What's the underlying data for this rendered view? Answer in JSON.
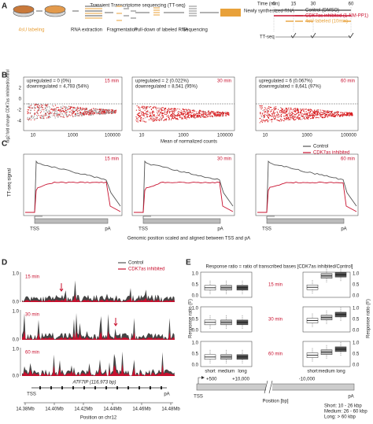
{
  "panels": {
    "a": {
      "letter": "A",
      "title": "Transient Transcriptome sequencing (TT-seq)",
      "steps": [
        "4sU labeling",
        "RNA extraction",
        "Fragmentation",
        "Pull-down of labeled RNA",
        "Sequencing"
      ],
      "result": "Newly synthesized RNA",
      "time_label": "Time (min)",
      "times": [
        "0",
        "15",
        "30",
        "60"
      ],
      "legend": [
        "Control (DMSO)",
        "CDK7as inhibited (1-NM-PP1)",
        "4sU-labeled (10min)"
      ],
      "ttseq": "TT-seq"
    },
    "b": {
      "letter": "B",
      "y_label": "log2 fold change CDK7as inhibited/control",
      "x_label": "Mean of normalized counts",
      "yticks": [
        "2",
        "0",
        "-2",
        "-4"
      ],
      "xticks": [
        "10",
        "1000",
        "100000"
      ],
      "plots": [
        {
          "time": "15 min",
          "up": "upregulated = 0 (0%)",
          "down": "downregulated = 4,793 (54%)"
        },
        {
          "time": "30 min",
          "up": "upregulated = 2 (0.022%)",
          "down": "downregulated = 8,541 (95%)"
        },
        {
          "time": "60 min",
          "up": "upregulated = 6 (0.067%)",
          "down": "downregulated = 8,641 (97%)"
        }
      ]
    },
    "c": {
      "letter": "C",
      "legend": [
        "Control",
        "CDK7as inhibited"
      ],
      "y_label": "TT-seq signal",
      "times": [
        "15 min",
        "30 min",
        "60 min"
      ],
      "tss": "TSS",
      "pa": "pA",
      "x_label": "Genomic position scaled and aligned between TSS and pA"
    },
    "d": {
      "letter": "D",
      "legend": [
        "Control",
        "CDK7as inhibited"
      ],
      "times": [
        "15 min",
        "30 min",
        "60 min"
      ],
      "yticks": [
        "1.0",
        "0.0"
      ],
      "gene": "ATF7IP (116,973 bp)",
      "tss": "TSS",
      "pa": "pA",
      "xticks": [
        "14.38Mb",
        "14.40Mb",
        "14.42Mb",
        "14.44Mb",
        "14.46Mb",
        "14.48Mb"
      ],
      "x_label": "Position on chr12"
    },
    "e": {
      "letter": "E",
      "title": "Response ratio = ratio of transcribed bases [CDK7as inhibited/Control]",
      "times": [
        "15 min",
        "30 min",
        "60 min"
      ],
      "y_label": "Response ratio (F)",
      "yticks": [
        "1.0",
        "0.5",
        "0.0"
      ],
      "groups": [
        "short",
        "medium",
        "long"
      ],
      "positions": [
        "+500",
        "+10,000",
        "-10,000"
      ],
      "tss": "TSS",
      "pa": "pA",
      "x_label": "Position [bp]",
      "sizes": [
        "Short: 10 - 26 kbp",
        "Medium: 26 - 60 kbp",
        "Long: > 60 kbp"
      ]
    }
  }
}
